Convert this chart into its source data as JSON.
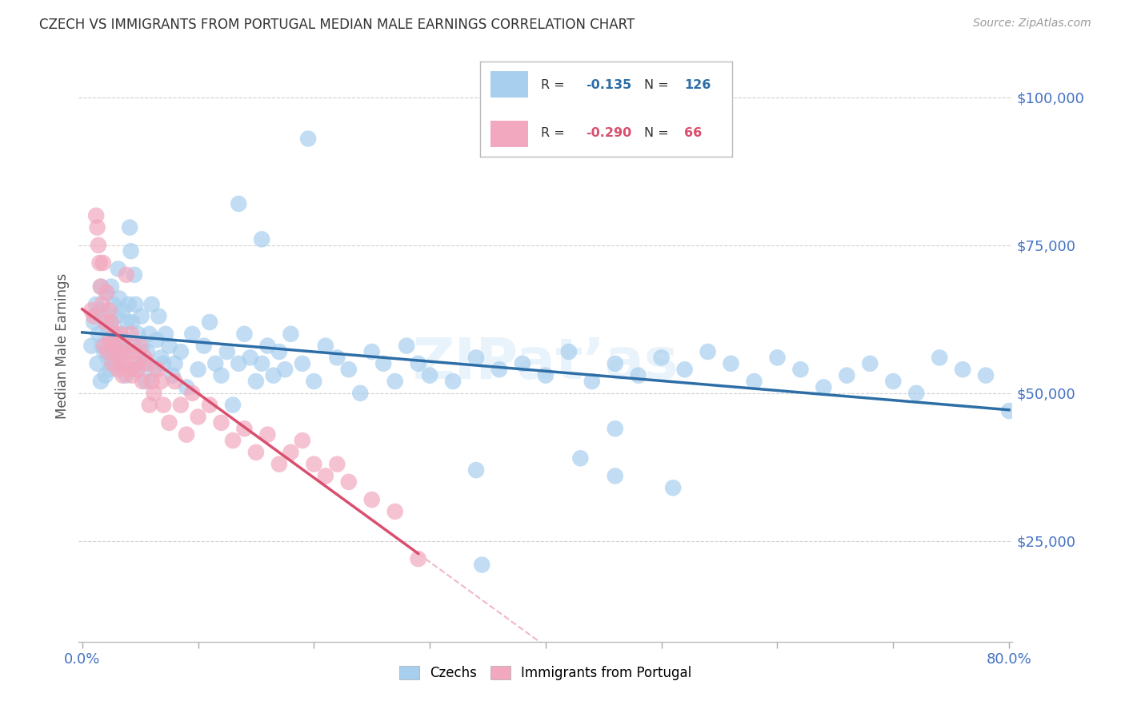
{
  "title": "CZECH VS IMMIGRANTS FROM PORTUGAL MEDIAN MALE EARNINGS CORRELATION CHART",
  "source": "Source: ZipAtlas.com",
  "ylabel": "Median Male Earnings",
  "ytick_labels": [
    "$25,000",
    "$50,000",
    "$75,000",
    "$100,000"
  ],
  "ytick_values": [
    25000,
    50000,
    75000,
    100000
  ],
  "ymin": 8000,
  "ymax": 108000,
  "xmin": -0.003,
  "xmax": 0.803,
  "xtick_values": [
    0.0,
    0.1,
    0.2,
    0.3,
    0.4,
    0.5,
    0.6,
    0.7,
    0.8
  ],
  "xtick_labels_visible": [
    "0.0%",
    "",
    "",
    "",
    "",
    "",
    "",
    "",
    "80.0%"
  ],
  "legend_blue_R": "-0.135",
  "legend_blue_N": "126",
  "legend_pink_R": "-0.290",
  "legend_pink_N": "66",
  "blue_color": "#A8CFEE",
  "pink_color": "#F2A8BE",
  "trendline_blue_color": "#2E6EA6",
  "trendline_pink_color": "#D94F6E",
  "trendline_pink_dashed_color": "#F0B8C8",
  "background_color": "#FFFFFF",
  "grid_color": "#CCCCCC",
  "axis_tick_color": "#4472C4",
  "title_color": "#333333",
  "source_color": "#999999",
  "blue_label": "Czechs",
  "pink_label": "Immigrants from Portugal",
  "blue_scatter_x": [
    0.008,
    0.01,
    0.012,
    0.013,
    0.014,
    0.015,
    0.016,
    0.016,
    0.017,
    0.018,
    0.019,
    0.02,
    0.021,
    0.022,
    0.022,
    0.023,
    0.024,
    0.025,
    0.025,
    0.026,
    0.027,
    0.028,
    0.028,
    0.03,
    0.03,
    0.031,
    0.032,
    0.033,
    0.034,
    0.035,
    0.036,
    0.037,
    0.038,
    0.039,
    0.04,
    0.041,
    0.042,
    0.043,
    0.044,
    0.045,
    0.046,
    0.047,
    0.048,
    0.05,
    0.051,
    0.052,
    0.053,
    0.055,
    0.056,
    0.058,
    0.06,
    0.062,
    0.064,
    0.066,
    0.068,
    0.07,
    0.072,
    0.075,
    0.078,
    0.08,
    0.085,
    0.09,
    0.095,
    0.1,
    0.105,
    0.11,
    0.115,
    0.12,
    0.125,
    0.13,
    0.135,
    0.14,
    0.145,
    0.15,
    0.155,
    0.16,
    0.165,
    0.17,
    0.175,
    0.18,
    0.19,
    0.2,
    0.21,
    0.22,
    0.23,
    0.24,
    0.25,
    0.26,
    0.27,
    0.28,
    0.29,
    0.3,
    0.32,
    0.34,
    0.36,
    0.38,
    0.4,
    0.42,
    0.44,
    0.46,
    0.48,
    0.5,
    0.52,
    0.54,
    0.56,
    0.58,
    0.6,
    0.62,
    0.64,
    0.66,
    0.68,
    0.7,
    0.72,
    0.74,
    0.76,
    0.78,
    0.8,
    0.195,
    0.345,
    0.46,
    0.135,
    0.43,
    0.51,
    0.46,
    0.34,
    0.155
  ],
  "blue_scatter_y": [
    58000,
    62000,
    65000,
    55000,
    60000,
    64000,
    52000,
    68000,
    58000,
    63000,
    57000,
    53000,
    67000,
    56000,
    61000,
    59000,
    54000,
    68000,
    62000,
    57000,
    65000,
    60000,
    55000,
    63000,
    58000,
    71000,
    66000,
    60000,
    55000,
    64000,
    59000,
    57000,
    53000,
    62000,
    65000,
    78000,
    74000,
    62000,
    58000,
    70000,
    65000,
    54000,
    60000,
    56000,
    63000,
    58000,
    55000,
    52000,
    57000,
    60000,
    65000,
    54000,
    59000,
    63000,
    56000,
    55000,
    60000,
    58000,
    53000,
    55000,
    57000,
    51000,
    60000,
    54000,
    58000,
    62000,
    55000,
    53000,
    57000,
    48000,
    55000,
    60000,
    56000,
    52000,
    55000,
    58000,
    53000,
    57000,
    54000,
    60000,
    55000,
    52000,
    58000,
    56000,
    54000,
    50000,
    57000,
    55000,
    52000,
    58000,
    55000,
    53000,
    52000,
    56000,
    54000,
    55000,
    53000,
    57000,
    52000,
    55000,
    53000,
    56000,
    54000,
    57000,
    55000,
    52000,
    56000,
    54000,
    51000,
    53000,
    55000,
    52000,
    50000,
    56000,
    54000,
    53000,
    47000,
    93000,
    21000,
    36000,
    82000,
    39000,
    34000,
    44000,
    37000,
    76000
  ],
  "pink_scatter_x": [
    0.008,
    0.01,
    0.012,
    0.013,
    0.014,
    0.015,
    0.016,
    0.017,
    0.018,
    0.019,
    0.02,
    0.021,
    0.022,
    0.023,
    0.024,
    0.025,
    0.026,
    0.027,
    0.028,
    0.03,
    0.031,
    0.032,
    0.033,
    0.035,
    0.036,
    0.037,
    0.038,
    0.04,
    0.041,
    0.042,
    0.043,
    0.045,
    0.046,
    0.048,
    0.05,
    0.052,
    0.054,
    0.056,
    0.058,
    0.06,
    0.062,
    0.065,
    0.068,
    0.07,
    0.075,
    0.08,
    0.085,
    0.09,
    0.095,
    0.1,
    0.11,
    0.12,
    0.13,
    0.14,
    0.15,
    0.16,
    0.17,
    0.18,
    0.19,
    0.2,
    0.21,
    0.22,
    0.23,
    0.25,
    0.27,
    0.29
  ],
  "pink_scatter_y": [
    64000,
    63000,
    80000,
    78000,
    75000,
    72000,
    68000,
    65000,
    72000,
    58000,
    62000,
    67000,
    57000,
    64000,
    59000,
    62000,
    55000,
    58000,
    60000,
    57000,
    54000,
    56000,
    60000,
    53000,
    58000,
    55000,
    70000,
    57000,
    54000,
    60000,
    53000,
    57000,
    55000,
    54000,
    58000,
    52000,
    56000,
    55000,
    48000,
    52000,
    50000,
    54000,
    52000,
    48000,
    45000,
    52000,
    48000,
    43000,
    50000,
    46000,
    48000,
    45000,
    42000,
    44000,
    40000,
    43000,
    38000,
    40000,
    42000,
    38000,
    36000,
    38000,
    35000,
    32000,
    30000,
    22000
  ]
}
